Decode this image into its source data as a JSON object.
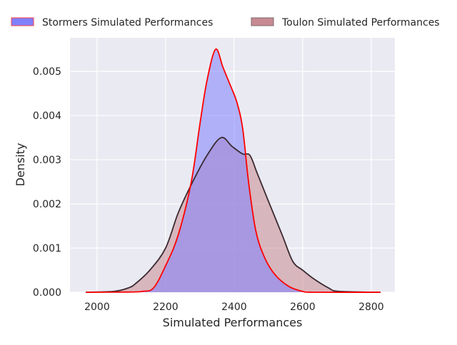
{
  "chart_data": {
    "type": "area",
    "title": "",
    "xlabel": "Simulated Performances",
    "ylabel": "Density",
    "xlim": [
      1921,
      2869
    ],
    "ylim": [
      0,
      0.00576
    ],
    "xticks": [
      2000,
      2200,
      2400,
      2600,
      2800
    ],
    "xtick_labels": [
      "2000",
      "2200",
      "2400",
      "2600",
      "2800"
    ],
    "yticks": [
      0,
      0.001,
      0.002,
      0.003,
      0.004,
      0.005
    ],
    "ytick_labels": [
      "0.000",
      "0.001",
      "0.002",
      "0.003",
      "0.004",
      "0.005"
    ],
    "grid": true,
    "legend_position": "top, above plot",
    "series": [
      {
        "name": "Stormers Simulated Performances",
        "fill": "#8080ff",
        "line": "#ff0000",
        "x": [
          1967,
          2092,
          2133,
          2165,
          2200,
          2237,
          2275,
          2300,
          2321,
          2346,
          2367,
          2388,
          2408,
          2425,
          2442,
          2463,
          2488,
          2519,
          2560,
          2600,
          2633,
          2827
        ],
        "y": [
          0,
          5e-06,
          2e-05,
          0.0001,
          0.0006,
          0.0013,
          0.0025,
          0.0038,
          0.0048,
          0.0055,
          0.0051,
          0.0047,
          0.0043,
          0.0037,
          0.0025,
          0.0014,
          0.0008,
          0.0004,
          0.00013,
          2e-05,
          0,
          0
        ]
      },
      {
        "name": "Toulon Simulated Performances",
        "fill": "#c88a92",
        "line": "#3a2a30",
        "x": [
          1967,
          2050,
          2092,
          2113,
          2154,
          2200,
          2237,
          2279,
          2321,
          2362,
          2394,
          2425,
          2446,
          2467,
          2498,
          2540,
          2571,
          2600,
          2633,
          2675,
          2706,
          2827
        ],
        "y": [
          0,
          2e-05,
          0.0001,
          0.0002,
          0.0005,
          0.001,
          0.0018,
          0.0025,
          0.0031,
          0.0035,
          0.0033,
          0.00313,
          0.0031,
          0.0027,
          0.0021,
          0.0013,
          0.0007,
          0.0005,
          0.0003,
          0.0001,
          2e-05,
          0
        ]
      }
    ]
  }
}
